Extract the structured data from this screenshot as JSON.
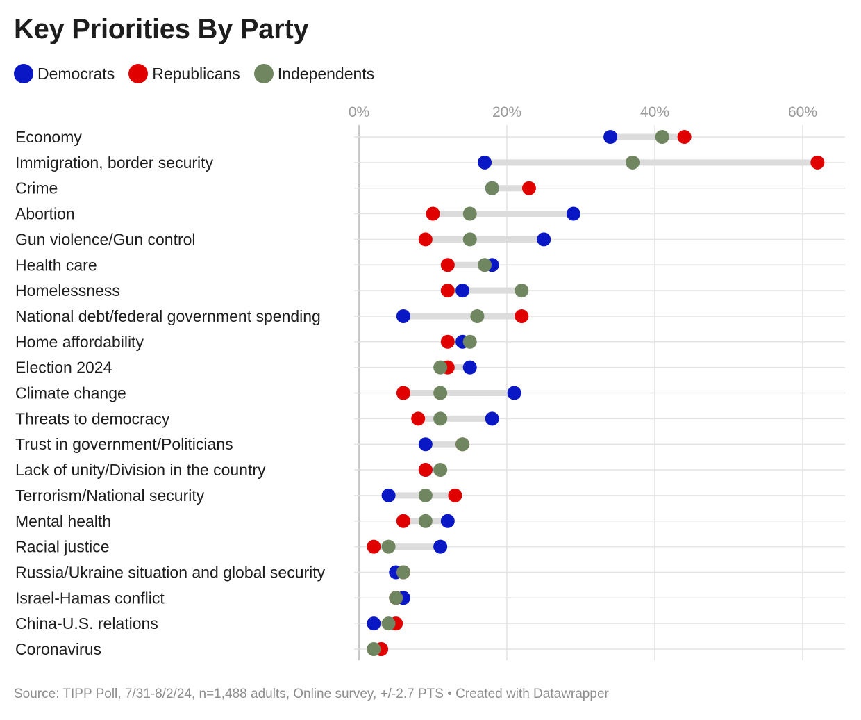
{
  "chart_data": {
    "type": "dot",
    "title": "Key Priorities By Party",
    "xlim": [
      0,
      65
    ],
    "xticks": [
      0,
      20,
      40,
      60
    ],
    "tick_suffix": "%",
    "series": [
      {
        "name": "Democrats",
        "color": "#0a17c4"
      },
      {
        "name": "Republicans",
        "color": "#e00000"
      },
      {
        "name": "Independents",
        "color": "#6f8660"
      }
    ],
    "categories": [
      "Economy",
      "Immigration, border security",
      "Crime",
      "Abortion",
      "Gun violence/Gun control",
      "Health care",
      "Homelessness",
      "National debt/federal government spending",
      "Home affordability",
      "Election 2024",
      "Climate change",
      "Threats to democracy",
      "Trust in government/Politicians",
      "Lack of unity/Division in the country",
      "Terrorism/National security",
      "Mental health",
      "Racial justice",
      "Russia/Ukraine situation and global security",
      "Israel-Hamas conflict",
      "China-U.S. relations",
      "Coronavirus"
    ],
    "values": {
      "Democrats": [
        34,
        17,
        18,
        29,
        25,
        18,
        14,
        6,
        14,
        15,
        21,
        18,
        9,
        9,
        4,
        12,
        11,
        5,
        6,
        2,
        3
      ],
      "Republicans": [
        44,
        62,
        23,
        10,
        9,
        12,
        12,
        22,
        12,
        12,
        6,
        8,
        14,
        9,
        13,
        6,
        2,
        6,
        5,
        5,
        3
      ],
      "Independents": [
        41,
        37,
        18,
        15,
        15,
        17,
        22,
        16,
        15,
        11,
        11,
        11,
        14,
        11,
        9,
        9,
        4,
        6,
        5,
        4,
        2
      ]
    }
  },
  "source": "Source: TIPP Poll, 7/31-8/2/24, n=1,488 adults, Online survey, +/-2.7 PTS • Created with Datawrapper"
}
